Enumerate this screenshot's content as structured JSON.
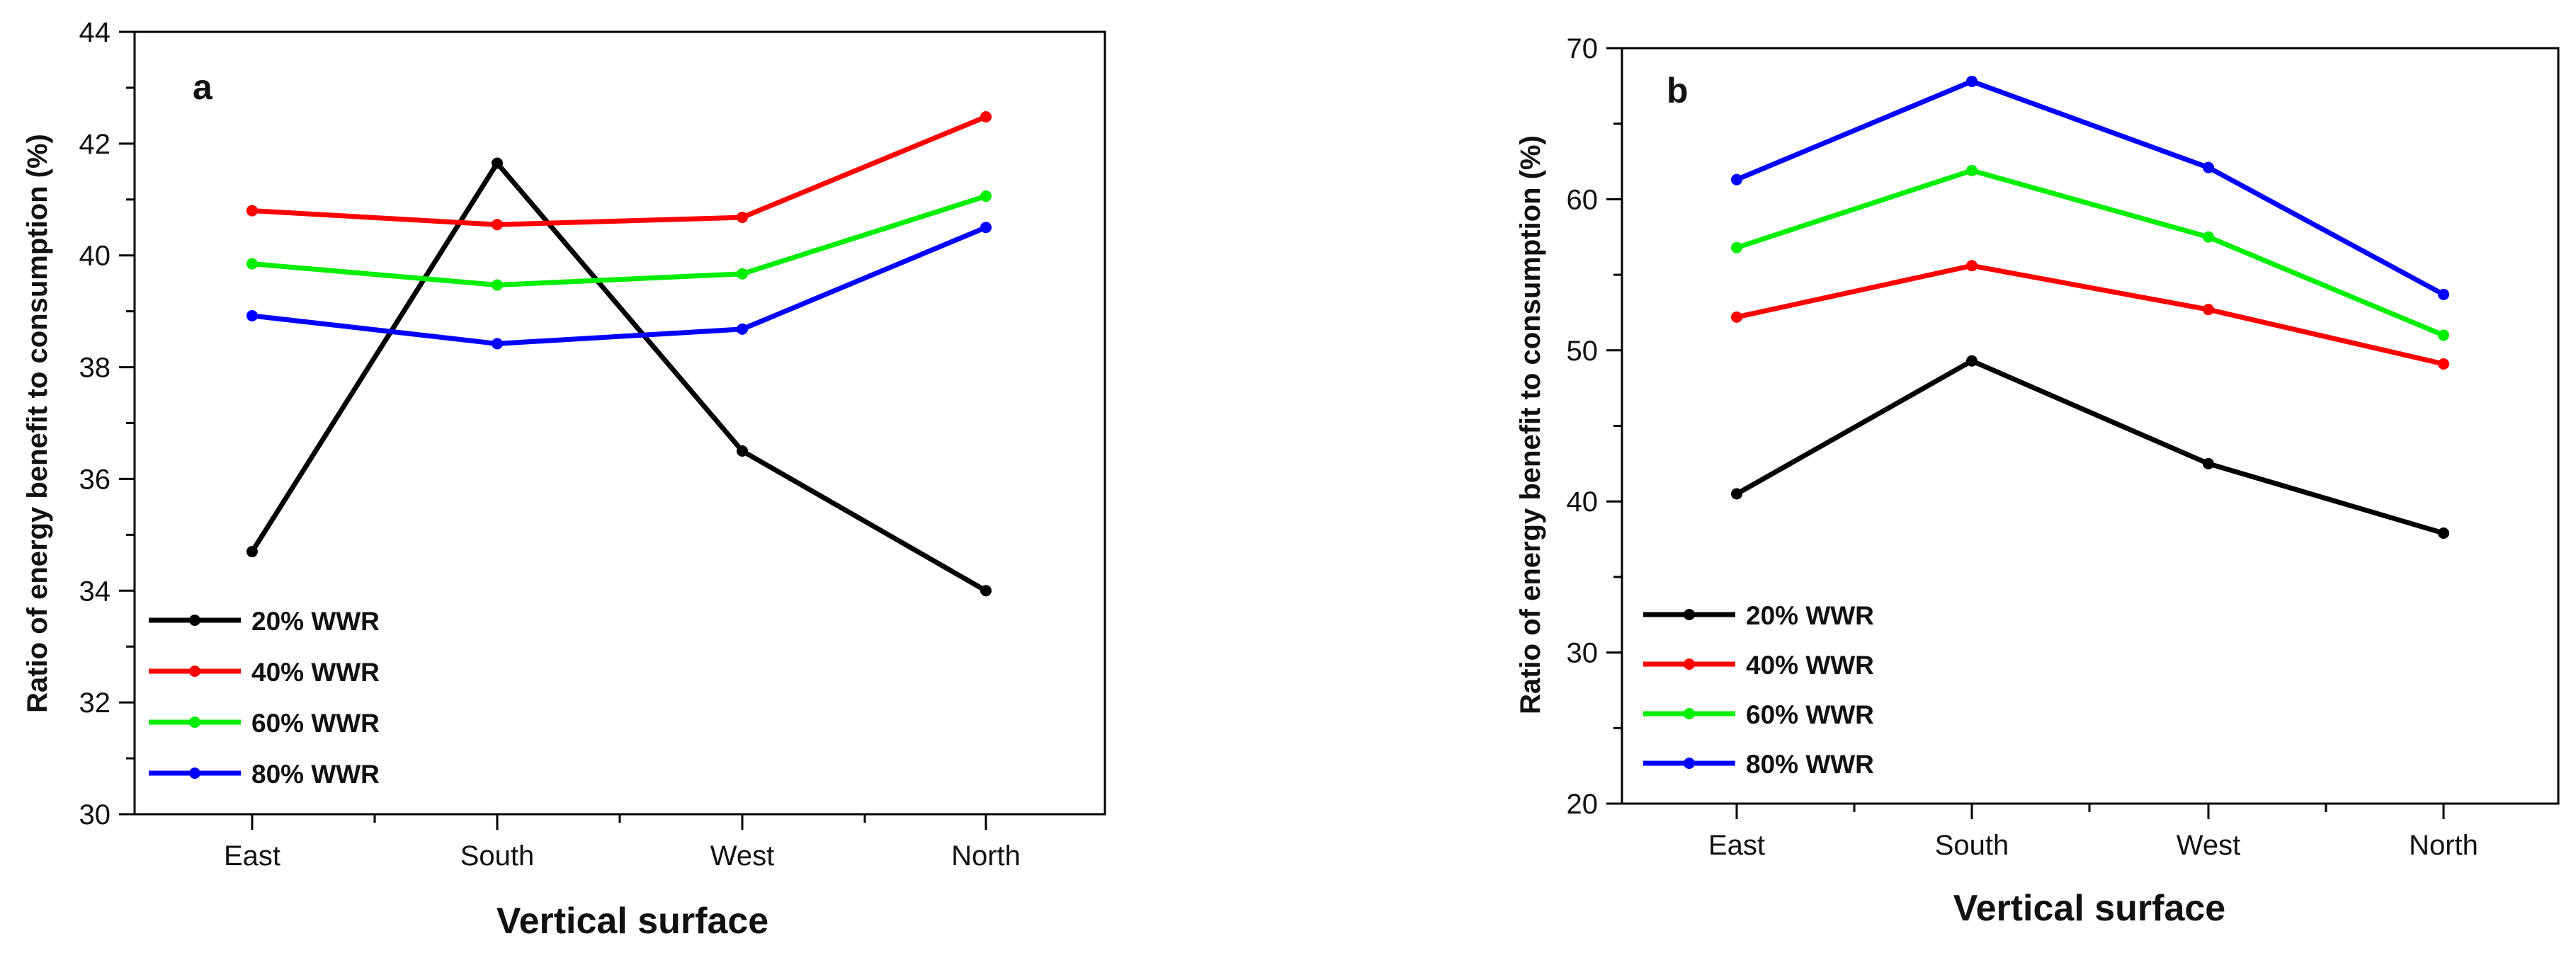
{
  "chart_data": [
    {
      "type": "line",
      "panel_label": "a",
      "categories": [
        "East",
        "South",
        "West",
        "North"
      ],
      "xlabel": "Vertical surface",
      "ylabel": "Ratio of energy benefit to consumption (%)",
      "ylim": [
        30,
        44
      ],
      "yticks": [
        "30",
        "32",
        "34",
        "36",
        "38",
        "40",
        "42",
        "44"
      ],
      "ytick_values": [
        30,
        32,
        34,
        36,
        38,
        40,
        42,
        44
      ],
      "legend_position": "bottom-left",
      "series": [
        {
          "name": "20% WWR",
          "color": "#000000",
          "values": [
            34.7,
            41.65,
            36.5,
            34.0
          ]
        },
        {
          "name": "40% WWR",
          "color": "#ff0000",
          "values": [
            40.8,
            40.55,
            40.68,
            42.48
          ]
        },
        {
          "name": "60% WWR",
          "color": "#00ee00",
          "values": [
            39.85,
            39.47,
            39.67,
            41.06
          ]
        },
        {
          "name": "80% WWR",
          "color": "#0000ff",
          "values": [
            38.92,
            38.42,
            38.68,
            40.5
          ]
        }
      ]
    },
    {
      "type": "line",
      "panel_label": "b",
      "categories": [
        "East",
        "South",
        "West",
        "North"
      ],
      "xlabel": "Vertical surface",
      "ylabel": "Ratio of energy benefit to consumption (%)",
      "ylim": [
        20,
        70
      ],
      "yticks": [
        "20",
        "30",
        "40",
        "50",
        "60",
        "70"
      ],
      "ytick_values": [
        20,
        30,
        40,
        50,
        60,
        70
      ],
      "legend_position": "bottom-left",
      "series": [
        {
          "name": "20% WWR",
          "color": "#000000",
          "values": [
            40.5,
            49.3,
            42.5,
            37.9
          ]
        },
        {
          "name": "40% WWR",
          "color": "#ff0000",
          "values": [
            52.2,
            55.6,
            52.7,
            49.1
          ]
        },
        {
          "name": "60% WWR",
          "color": "#00ee00",
          "values": [
            56.8,
            61.9,
            57.5,
            51.0
          ]
        },
        {
          "name": "80% WWR",
          "color": "#0000ff",
          "values": [
            61.3,
            67.8,
            62.1,
            53.7
          ]
        }
      ]
    }
  ]
}
